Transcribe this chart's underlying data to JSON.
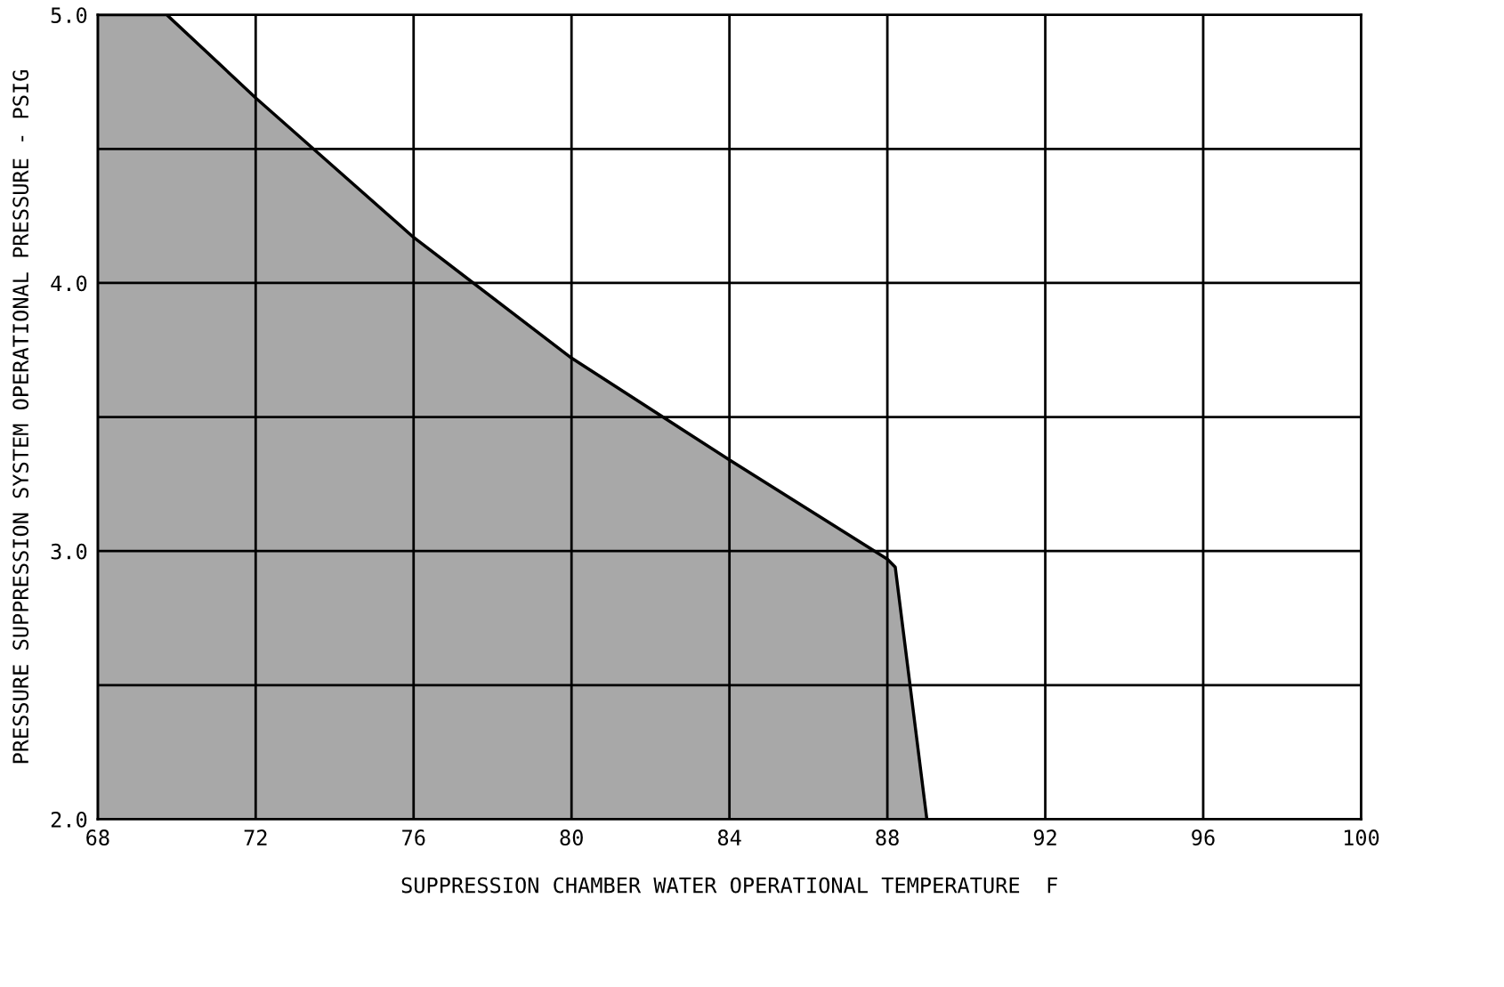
{
  "chart_data": {
    "type": "area",
    "xlabel": "SUPPRESSION CHAMBER WATER OPERATIONAL TEMPERATURE  F",
    "ylabel": "PRESSURE SUPPRESSION SYSTEM OPERATIONAL PRESSURE - PSIG",
    "series": [
      {
        "color": "#a8a8a8",
        "x": [
          68,
          69.75,
          72,
          76,
          80,
          84,
          88,
          88.2,
          89.0
        ],
        "values": [
          5.0,
          5.0,
          4.69,
          4.17,
          3.72,
          3.34,
          2.97,
          2.94,
          2.0
        ]
      }
    ],
    "xlim": [
      68,
      100
    ],
    "xticks": [
      68,
      72,
      76,
      80,
      84,
      88,
      92,
      96,
      100
    ],
    "ylim": [
      2.0,
      5.0
    ],
    "yticks": [
      {
        "value": 2.0,
        "label": "2.0"
      },
      {
        "value": 2.5,
        "label": null
      },
      {
        "value": 3.0,
        "label": "3.0"
      },
      {
        "value": 3.5,
        "label": null
      },
      {
        "value": 4.0,
        "label": "4.0"
      },
      {
        "value": 4.5,
        "label": null
      },
      {
        "value": 5.0,
        "label": "5.0"
      }
    ],
    "grid": true,
    "legend": false
  }
}
